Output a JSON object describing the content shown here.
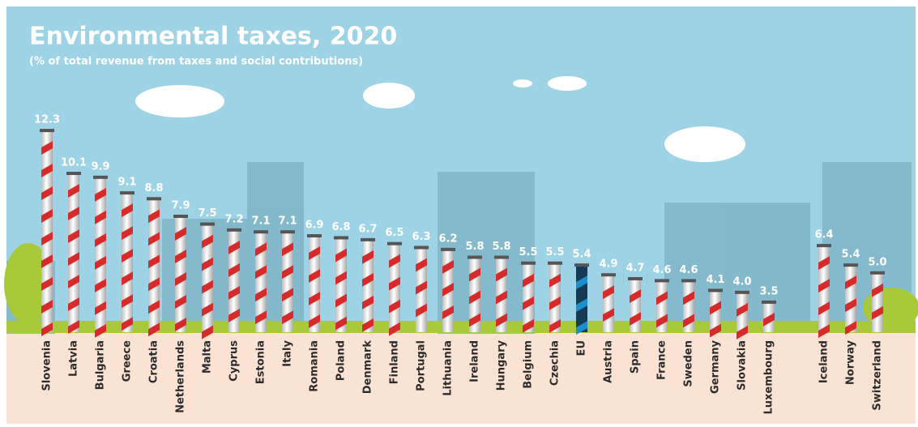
{
  "chart_data": {
    "type": "bar",
    "title": "Environmental taxes, 2020",
    "subtitle": "(% of total revenue from taxes and social contributions)",
    "categories": [
      "Slovenia",
      "Latvia",
      "Bulgaria",
      "Greece",
      "Croatia",
      "Netherlands",
      "Malta",
      "Cyprus",
      "Estonia",
      "Italy",
      "Romania",
      "Poland",
      "Denmark",
      "Finland",
      "Portugal",
      "Lithuania",
      "Ireland",
      "Hungary",
      "Belgium",
      "Czechia",
      "EU",
      "Austria",
      "Spain",
      "France",
      "Sweden",
      "Germany",
      "Slovakia",
      "Luxembourg",
      "Iceland",
      "Norway",
      "Switzerland"
    ],
    "values": [
      12.3,
      10.1,
      9.9,
      9.1,
      8.8,
      7.9,
      7.5,
      7.2,
      7.1,
      7.1,
      6.9,
      6.8,
      6.7,
      6.5,
      6.3,
      6.2,
      5.8,
      5.8,
      5.5,
      5.5,
      5.4,
      4.9,
      4.7,
      4.6,
      4.6,
      4.1,
      4.0,
      3.5,
      6.4,
      5.4,
      5.0
    ],
    "value_labels": [
      "12.3",
      "10.1",
      "9.9",
      "9.1",
      "8.8",
      "7.9",
      "7.5",
      "7.2",
      "7.1",
      "7.1",
      "6.9",
      "6.8",
      "6.7",
      "6.5",
      "6.3",
      "6.2",
      "5.8",
      "5.8",
      "5.5",
      "5.5",
      "5.4",
      "4.9",
      "4.7",
      "4.6",
      "4.6",
      "4.1",
      "4.0",
      "3.5",
      "6.4",
      "5.4",
      "5.0"
    ],
    "colors": [
      "#d62b2b",
      "#d62b2b",
      "#d62b2b",
      "#d62b2b",
      "#d62b2b",
      "#d62b2b",
      "#d62b2b",
      "#d62b2b",
      "#d62b2b",
      "#d62b2b",
      "#d62b2b",
      "#d62b2b",
      "#d62b2b",
      "#d62b2b",
      "#d62b2b",
      "#d62b2b",
      "#d62b2b",
      "#d62b2b",
      "#d62b2b",
      "#d62b2b",
      "#1b8fcc",
      "#d62b2b",
      "#d62b2b",
      "#d62b2b",
      "#d62b2b",
      "#d62b2b",
      "#d62b2b",
      "#d62b2b",
      "#d62b2b",
      "#d62b2b",
      "#d62b2b"
    ],
    "ylim": [
      2,
      12.8
    ]
  }
}
